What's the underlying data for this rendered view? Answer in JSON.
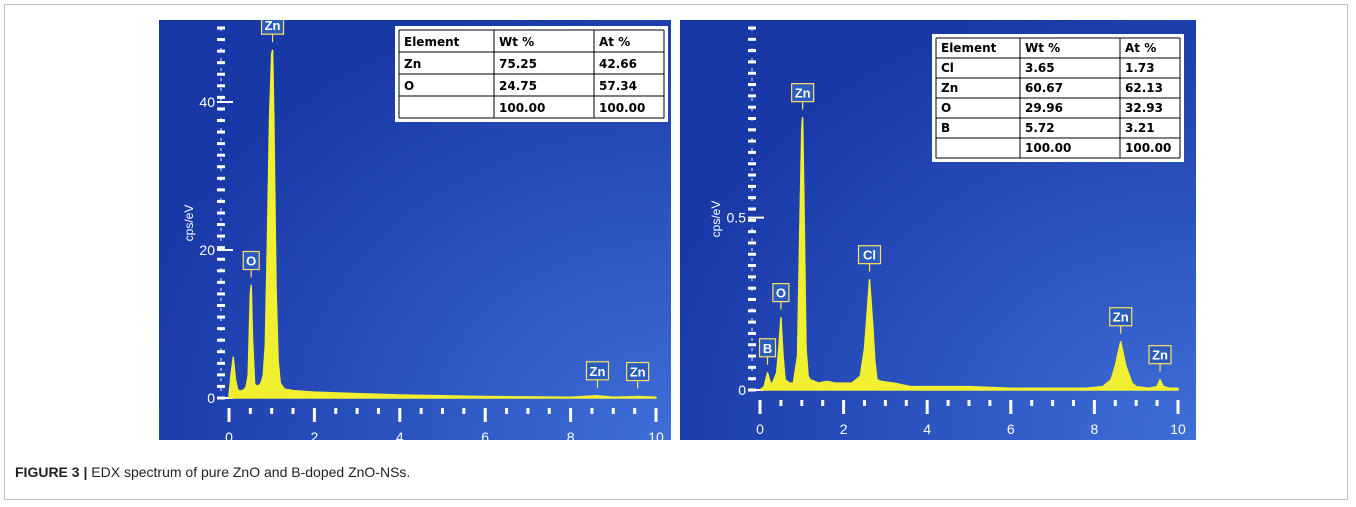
{
  "caption": {
    "label": "FIGURE 3 |",
    "text": " EDX spectrum of pure ZnO and B-doped ZnO-NSs."
  },
  "colors": {
    "background_outer": "#1838a6",
    "background_inner": "#3f6ed8",
    "spectrum": "#f0f030",
    "axis_text": "#ffffff"
  },
  "chart_data": [
    {
      "type": "line",
      "title": "",
      "xlabel": "",
      "ylabel": "cps/eV",
      "xlim": [
        0,
        10
      ],
      "ylim": [
        0,
        50
      ],
      "x_ticks": [
        "0",
        "2",
        "4",
        "6",
        "8",
        "10"
      ],
      "y_ticks": [
        {
          "value": 0,
          "label": "0"
        },
        {
          "value": 20,
          "label": "20"
        },
        {
          "value": 40,
          "label": "40"
        }
      ],
      "series": [
        {
          "x": [
            0,
            0.05,
            0.1,
            0.15,
            0.2,
            0.25,
            0.3,
            0.35,
            0.4,
            0.45,
            0.5,
            0.52,
            0.55,
            0.6,
            0.65,
            0.7,
            0.75,
            0.8,
            0.85,
            0.9,
            0.95,
            1.0,
            1.02,
            1.05,
            1.1,
            1.15,
            1.2,
            1.3,
            1.5,
            2,
            3,
            4,
            5,
            6,
            7,
            8,
            8.6,
            9,
            9.6,
            10
          ],
          "y": [
            0.3,
            3.2,
            5.5,
            2.5,
            1.2,
            0.9,
            1.0,
            1.1,
            1.5,
            3.0,
            14.0,
            15.2,
            8.0,
            1.9,
            1.6,
            1.7,
            2.0,
            3.0,
            7.0,
            21.0,
            38.0,
            46.5,
            47.0,
            38.0,
            15.0,
            5.0,
            2.0,
            1.2,
            1.0,
            0.8,
            0.6,
            0.4,
            0.3,
            0.2,
            0.15,
            0.1,
            0.3,
            0.1,
            0.2,
            0.1
          ]
        }
      ],
      "peak_labels": [
        {
          "label": "O",
          "x": 0.52,
          "y": 15.2
        },
        {
          "label": "Zn",
          "x": 1.02,
          "y": 47.0
        },
        {
          "label": "Zn",
          "x": 8.63,
          "y": 0.3
        },
        {
          "label": "Zn",
          "x": 9.57,
          "y": 0.2
        }
      ],
      "table": {
        "headers": [
          "Element",
          "Wt %",
          "At %"
        ],
        "rows": [
          [
            "Zn",
            "75.25",
            "42.66"
          ],
          [
            "O",
            "24.75",
            "57.34"
          ],
          [
            "",
            "100.00",
            "100.00"
          ]
        ]
      }
    },
    {
      "type": "line",
      "title": "",
      "xlabel": "",
      "ylabel": "cps/eV",
      "xlim": [
        0,
        10
      ],
      "ylim": [
        0,
        1.05
      ],
      "x_ticks": [
        "0",
        "2",
        "4",
        "6",
        "8",
        "10"
      ],
      "y_ticks": [
        {
          "value": 0,
          "label": "0"
        },
        {
          "value": 0.5,
          "label": "0.5"
        }
      ],
      "series": [
        {
          "x": [
            0,
            0.1,
            0.18,
            0.25,
            0.3,
            0.4,
            0.45,
            0.5,
            0.55,
            0.6,
            0.7,
            0.8,
            0.9,
            0.95,
            1.0,
            1.02,
            1.05,
            1.1,
            1.15,
            1.2,
            1.4,
            1.6,
            1.8,
            2.0,
            2.2,
            2.4,
            2.5,
            2.55,
            2.62,
            2.7,
            2.75,
            2.8,
            2.9,
            3.2,
            3.6,
            4.0,
            5.0,
            6.0,
            7.0,
            7.8,
            8.2,
            8.4,
            8.5,
            8.63,
            8.75,
            8.9,
            9.0,
            9.3,
            9.5,
            9.57,
            9.65,
            9.8,
            10.0
          ],
          "y": [
            0.0,
            0.01,
            0.05,
            0.02,
            0.02,
            0.05,
            0.12,
            0.21,
            0.1,
            0.03,
            0.02,
            0.02,
            0.1,
            0.45,
            0.76,
            0.79,
            0.55,
            0.12,
            0.04,
            0.03,
            0.02,
            0.025,
            0.02,
            0.02,
            0.02,
            0.04,
            0.12,
            0.2,
            0.32,
            0.18,
            0.08,
            0.03,
            0.025,
            0.02,
            0.01,
            0.01,
            0.01,
            0.005,
            0.005,
            0.005,
            0.01,
            0.03,
            0.07,
            0.14,
            0.07,
            0.02,
            0.01,
            0.005,
            0.01,
            0.03,
            0.01,
            0.005,
            0.005
          ]
        }
      ],
      "peak_labels": [
        {
          "label": "B",
          "x": 0.18,
          "y": 0.05
        },
        {
          "label": "O",
          "x": 0.5,
          "y": 0.21
        },
        {
          "label": "Zn",
          "x": 1.02,
          "y": 0.79
        },
        {
          "label": "Cl",
          "x": 2.62,
          "y": 0.32
        },
        {
          "label": "Zn",
          "x": 8.63,
          "y": 0.14
        },
        {
          "label": "Zn",
          "x": 9.57,
          "y": 0.03
        }
      ],
      "table": {
        "headers": [
          "Element",
          "Wt %",
          "At %"
        ],
        "rows": [
          [
            "Cl",
            "3.65",
            "1.73"
          ],
          [
            "Zn",
            "60.67",
            "62.13"
          ],
          [
            "O",
            "29.96",
            "32.93"
          ],
          [
            "B",
            "5.72",
            "3.21"
          ],
          [
            "",
            "100.00",
            "100.00"
          ]
        ]
      }
    }
  ]
}
